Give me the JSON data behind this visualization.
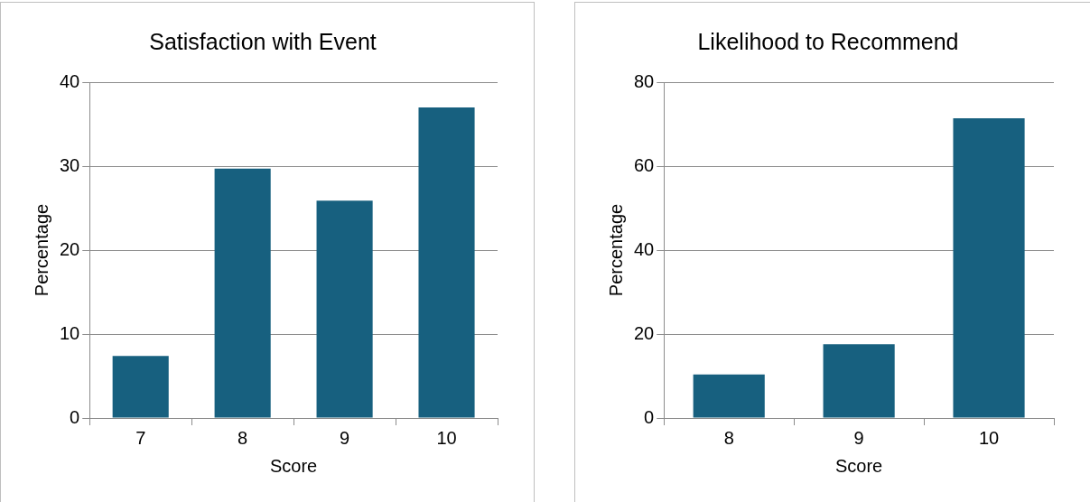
{
  "chart_data": [
    {
      "type": "bar",
      "title": "Satisfaction with Event",
      "xlabel": "Score",
      "ylabel": "Percentage",
      "categories": [
        "7",
        "8",
        "9",
        "10"
      ],
      "values": [
        7.4,
        29.7,
        25.9,
        37.0
      ],
      "color": "#17607f",
      "ylim": [
        0,
        40
      ],
      "yticks": [
        0,
        10,
        20,
        30,
        40
      ],
      "grid": "y",
      "legend": false
    },
    {
      "type": "bar",
      "title": "Likelihood to Recommend",
      "xlabel": "Score",
      "ylabel": "Percentage",
      "categories": [
        "8",
        "9",
        "10"
      ],
      "values": [
        10.4,
        17.6,
        71.4
      ],
      "color": "#17607f",
      "ylim": [
        0,
        80
      ],
      "yticks": [
        0,
        20,
        40,
        60,
        80
      ],
      "grid": "y",
      "legend": false
    }
  ]
}
